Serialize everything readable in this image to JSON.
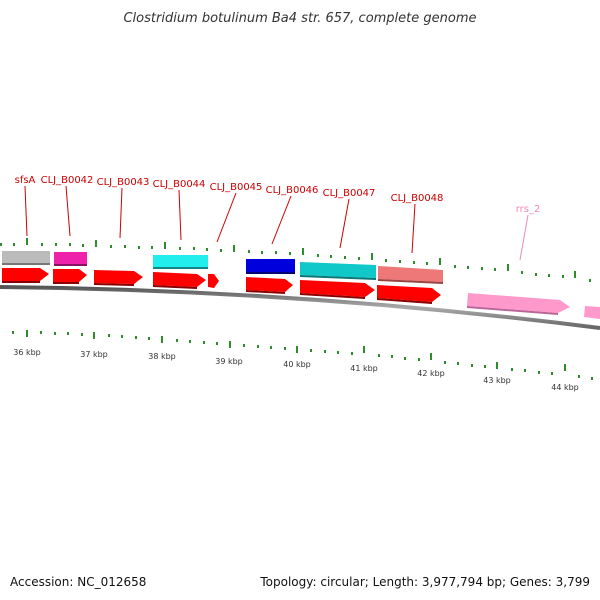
{
  "title": "Clostridium botulinum Ba4 str. 657, complete genome",
  "footer": {
    "accession": "Accession: NC_012658",
    "summary": "Topology: circular; Length: 3,977,794 bp; Genes: 3,799"
  },
  "colors": {
    "label_red": "#cc0000",
    "label_pink": "#ee88bb",
    "tick_green": "#2e8b2e",
    "backbone": "#777777",
    "red_arrow": "#ff0000",
    "gray_box": "#bbbbbb",
    "magenta_box": "#ee22aa",
    "cyan_box": "#22eeee",
    "blue_box": "#0000dd",
    "teal_box": "#11c8c8",
    "salmon_box": "#ee7777",
    "pink_arrow": "#ff99cc"
  },
  "gene_labels": [
    {
      "text": "sfsA",
      "color": "#cc0000"
    },
    {
      "text": "CLJ_B0042",
      "color": "#cc0000"
    },
    {
      "text": "CLJ_B0043",
      "color": "#cc0000"
    },
    {
      "text": "CLJ_B0044",
      "color": "#cc0000"
    },
    {
      "text": "CLJ_B0045",
      "color": "#cc0000"
    },
    {
      "text": "CLJ_B0046",
      "color": "#cc0000"
    },
    {
      "text": "CLJ_B0047",
      "color": "#cc0000"
    },
    {
      "text": "CLJ_B0048",
      "color": "#cc0000"
    },
    {
      "text": "rrs_2",
      "color": "#ee88bb"
    }
  ],
  "scale_labels": [
    "36 kbp",
    "37 kbp",
    "38 kbp",
    "39 kbp",
    "40 kbp",
    "41 kbp",
    "42 kbp",
    "43 kbp",
    "44 kbp"
  ]
}
